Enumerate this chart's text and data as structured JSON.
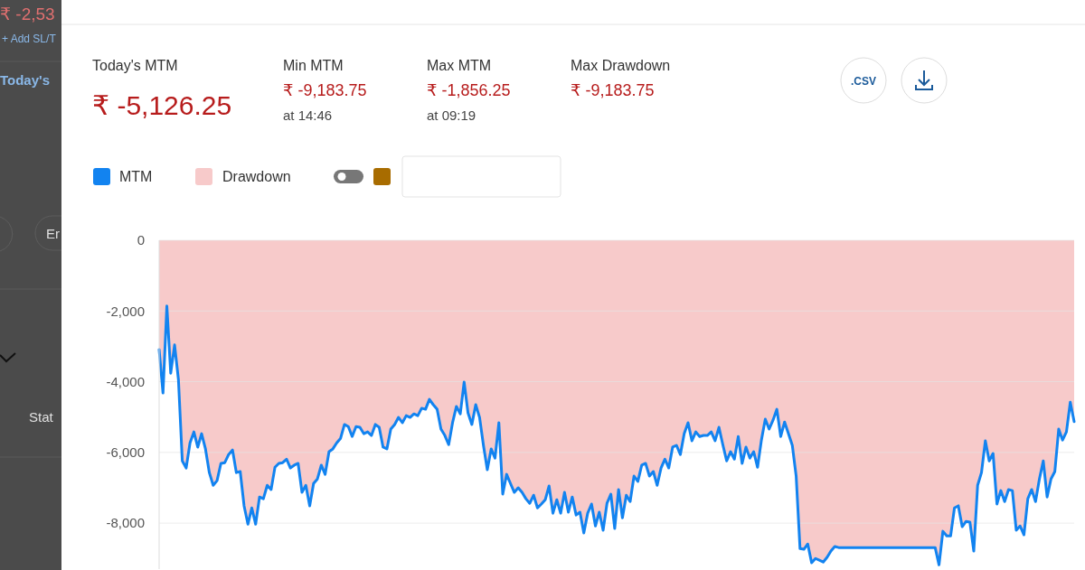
{
  "chart_data": {
    "type": "line",
    "categories": [
      null,
      null,
      null,
      null,
      null,
      null,
      null,
      null,
      null,
      null,
      null,
      null,
      null,
      null,
      null,
      null,
      null,
      null,
      null,
      null,
      null,
      null,
      null,
      null,
      null,
      null,
      null,
      null,
      null,
      null,
      null,
      null,
      null,
      null,
      null,
      null,
      null,
      null,
      null,
      null,
      null,
      null,
      null,
      null,
      null,
      null,
      null,
      null,
      null,
      null,
      null,
      null,
      null,
      null,
      null,
      null,
      null,
      null,
      null,
      null,
      null,
      null,
      null,
      null,
      null,
      null,
      null,
      null,
      null,
      null,
      null,
      null,
      null,
      null,
      null,
      null,
      null,
      null,
      null,
      null,
      null,
      null,
      null,
      null,
      null,
      null,
      null,
      null,
      null,
      null,
      null,
      null,
      null,
      null,
      null,
      null,
      null,
      null,
      null,
      null,
      null,
      null,
      null,
      null,
      null,
      null,
      null,
      null,
      null,
      null,
      null,
      null,
      null,
      null,
      null,
      null,
      null,
      null,
      null,
      null,
      null,
      null,
      null,
      null,
      null,
      null,
      null,
      null,
      null,
      null,
      null,
      null,
      null,
      null,
      null,
      null,
      null,
      null,
      null,
      null,
      null,
      null,
      null,
      null,
      null,
      null,
      null,
      null,
      null,
      null,
      null,
      null,
      null,
      null,
      null,
      null,
      null,
      null,
      null,
      null,
      null,
      null,
      null,
      null,
      null,
      null,
      null,
      null,
      null,
      null,
      null,
      null,
      null,
      null,
      null,
      null,
      null,
      null,
      null,
      null,
      null,
      null,
      null,
      null,
      null,
      null,
      null,
      null,
      null,
      null,
      null,
      null,
      null,
      null,
      null,
      null,
      null,
      null,
      null,
      null,
      null,
      null,
      null,
      null,
      null,
      null,
      null,
      null,
      null,
      null,
      null,
      null,
      null,
      null,
      null,
      null,
      null,
      null,
      null,
      null,
      null,
      null,
      null,
      null,
      null,
      null,
      null,
      null,
      null,
      null,
      null,
      null,
      null,
      null,
      null,
      null,
      null,
      null
    ],
    "series": [
      {
        "name": "Drawdown",
        "type": "area",
        "color": "#f7caca",
        "values": [
          -3090,
          -4320,
          -1860,
          -3760,
          -2960,
          -3940,
          -6240,
          -6440,
          -5730,
          -5420,
          -5850,
          -5470,
          -5900,
          -6570,
          -6930,
          -6800,
          -6310,
          -6290,
          -6060,
          -5930,
          -6570,
          -6540,
          -7510,
          -8030,
          -7570,
          -8030,
          -7260,
          -7310,
          -6930,
          -7050,
          -6420,
          -6310,
          -6290,
          -6190,
          -6440,
          -6360,
          -6310,
          -7130,
          -6930,
          -7510,
          -6880,
          -6750,
          -6360,
          -6620,
          -5980,
          -5900,
          -5730,
          -5600,
          -5210,
          -5270,
          -5550,
          -5270,
          -5290,
          -5470,
          -5420,
          -5520,
          -5210,
          -5290,
          -5850,
          -5900,
          -5340,
          -5210,
          -5010,
          -5160,
          -4960,
          -5010,
          -4910,
          -4960,
          -4750,
          -4780,
          -4500,
          -4650,
          -4780,
          -5340,
          -5520,
          -5780,
          -5160,
          -4700,
          -4910,
          -4010,
          -4880,
          -5210,
          -4650,
          -5010,
          -5800,
          -6490,
          -5900,
          -6160,
          -5160,
          -7180,
          -6620,
          -6880,
          -7130,
          -7000,
          -7130,
          -7310,
          -7440,
          -7210,
          -7570,
          -7460,
          -7340,
          -6950,
          -7720,
          -7340,
          -7720,
          -7130,
          -7690,
          -7260,
          -7770,
          -7690,
          -8280,
          -7720,
          -7460,
          -8080,
          -7690,
          -8200,
          -7440,
          -7180,
          -8150,
          -7050,
          -7850,
          -7210,
          -7390,
          -6670,
          -6820,
          -6360,
          -6310,
          -6670,
          -6540,
          -6930,
          -6440,
          -6190,
          -6440,
          -5850,
          -5800,
          -6060,
          -5470,
          -5160,
          -5670,
          -5420,
          -5550,
          -5520,
          -5520,
          -5420,
          -5670,
          -5290,
          -5780,
          -6240,
          -5980,
          -6190,
          -5550,
          -6310,
          -5850,
          -6160,
          -5980,
          -6420,
          -5650,
          -5060,
          -5340,
          -5090,
          -4780,
          -5550,
          -5140,
          -5470,
          -5800,
          -6670,
          -8720,
          -8740,
          -8590,
          -9120,
          -9000,
          -9050,
          -9100,
          -8970,
          -8790,
          -8660,
          -8690,
          -8690,
          -8690,
          -8690,
          -8690,
          -8690,
          -8690,
          -8690,
          -8690,
          -8690,
          -8690,
          -8690,
          -8690,
          -8690,
          -8690,
          -8690,
          -8690,
          -8690,
          -8690,
          -8690,
          -8690,
          -8690,
          -8690,
          -8690,
          -8690,
          -8690,
          -9180,
          -8230,
          -8360,
          -8360,
          -7570,
          -7510,
          -8100,
          -7950,
          -7970,
          -8790,
          -6930,
          -6570,
          -5670,
          -6240,
          -6030,
          -7460,
          -7080,
          -7390,
          -7050,
          -7080,
          -8200,
          -8080,
          -8330,
          -7310,
          -7050,
          -7390,
          -6750,
          -6240,
          -7260,
          -6750,
          -6540,
          -5340,
          -5650,
          -5420,
          -4580,
          -5130
        ]
      },
      {
        "name": "MTM",
        "color": "#1283f0",
        "values": [
          -3090,
          -4320,
          -1860,
          -3760,
          -2960,
          -3940,
          -6240,
          -6440,
          -5730,
          -5420,
          -5850,
          -5470,
          -5900,
          -6570,
          -6930,
          -6800,
          -6310,
          -6290,
          -6060,
          -5930,
          -6570,
          -6540,
          -7510,
          -8030,
          -7570,
          -8030,
          -7260,
          -7310,
          -6930,
          -7050,
          -6420,
          -6310,
          -6290,
          -6190,
          -6440,
          -6360,
          -6310,
          -7130,
          -6930,
          -7510,
          -6880,
          -6750,
          -6360,
          -6620,
          -5980,
          -5900,
          -5730,
          -5600,
          -5210,
          -5270,
          -5550,
          -5270,
          -5290,
          -5470,
          -5420,
          -5520,
          -5210,
          -5290,
          -5850,
          -5900,
          -5340,
          -5210,
          -5010,
          -5160,
          -4960,
          -5010,
          -4910,
          -4960,
          -4750,
          -4780,
          -4500,
          -4650,
          -4780,
          -5340,
          -5520,
          -5780,
          -5160,
          -4700,
          -4910,
          -4010,
          -4880,
          -5210,
          -4650,
          -5010,
          -5800,
          -6490,
          -5900,
          -6160,
          -5160,
          -7180,
          -6620,
          -6880,
          -7130,
          -7000,
          -7130,
          -7310,
          -7440,
          -7210,
          -7570,
          -7460,
          -7340,
          -6950,
          -7720,
          -7340,
          -7720,
          -7130,
          -7690,
          -7260,
          -7770,
          -7690,
          -8280,
          -7720,
          -7460,
          -8080,
          -7690,
          -8200,
          -7440,
          -7180,
          -8150,
          -7050,
          -7850,
          -7210,
          -7390,
          -6670,
          -6820,
          -6360,
          -6310,
          -6670,
          -6540,
          -6930,
          -6440,
          -6190,
          -6440,
          -5850,
          -5800,
          -6060,
          -5470,
          -5160,
          -5670,
          -5420,
          -5550,
          -5520,
          -5520,
          -5420,
          -5670,
          -5290,
          -5780,
          -6240,
          -5980,
          -6190,
          -5550,
          -6310,
          -5850,
          -6160,
          -5980,
          -6420,
          -5650,
          -5060,
          -5340,
          -5090,
          -4780,
          -5550,
          -5140,
          -5470,
          -5800,
          -6670,
          -8720,
          -8740,
          -8590,
          -9120,
          -9000,
          -9050,
          -9100,
          -8970,
          -8790,
          -8660,
          -8690,
          -8690,
          -8690,
          -8690,
          -8690,
          -8690,
          -8690,
          -8690,
          -8690,
          -8690,
          -8690,
          -8690,
          -8690,
          -8690,
          -8690,
          -8690,
          -8690,
          -8690,
          -8690,
          -8690,
          -8690,
          -8690,
          -8690,
          -8690,
          -8690,
          -8690,
          -9180,
          -8230,
          -8360,
          -8360,
          -7570,
          -7510,
          -8100,
          -7950,
          -7970,
          -8790,
          -6930,
          -6570,
          -5670,
          -6240,
          -6030,
          -7460,
          -7080,
          -7390,
          -7050,
          -7080,
          -8200,
          -8080,
          -8330,
          -7310,
          -7050,
          -7390,
          -6750,
          -6240,
          -7260,
          -6750,
          -6540,
          -5340,
          -5650,
          -5420,
          -4580,
          -5130
        ]
      }
    ],
    "ylim": [
      -9300,
      0
    ],
    "yticks": [
      0,
      {
        "value": -2000,
        "label": "-2,000"
      },
      {
        "value": -4000,
        "label": "-4,000"
      },
      {
        "value": -6000,
        "label": "-6,000"
      },
      {
        "value": -8000,
        "label": "-8,000"
      }
    ],
    "grid": "y",
    "legend": "top left",
    "tick_labels": "y",
    "marker": "none",
    "line_style": "solid",
    "annotations": [
      "Today's MTM",
      "₹ -5,126.25",
      "Min MTM",
      "₹ -9,183.75",
      "at 14:46",
      "Max MTM",
      "₹ -1,856.25",
      "at 09:19",
      "Max Drawdown",
      "₹ -9,183.75",
      ".CSV",
      "₹ -2,53",
      "+ Add SL/T",
      "Today's",
      "Er",
      "Stat"
    ]
  }
}
